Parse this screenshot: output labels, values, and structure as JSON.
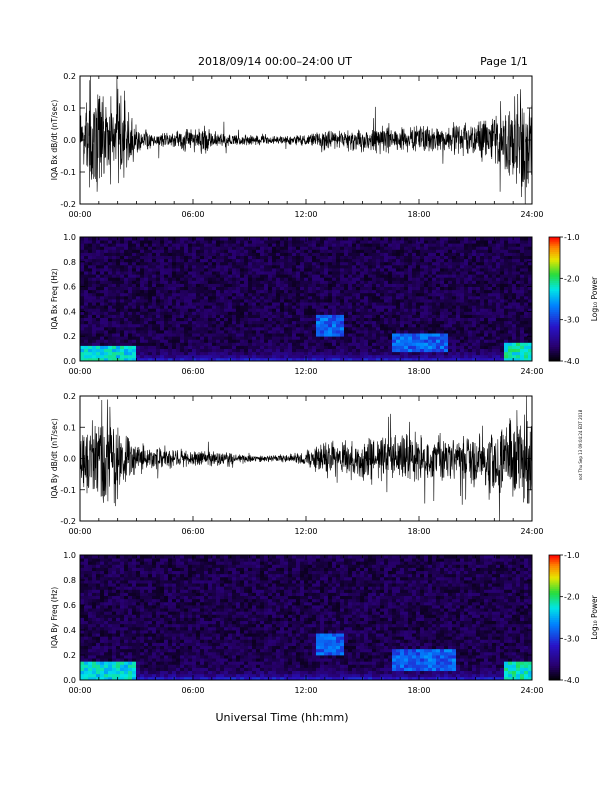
{
  "header": {
    "title": "2018/09/14   00:00–24:00 UT",
    "page": "Page 1/1"
  },
  "side_stamp": "not Thu Sep 13 09:04:24 EDT 2018",
  "xlabel": "Universal Time (hh:mm)",
  "colors": {
    "trace": "#000000",
    "axis": "#000000",
    "background": "#ffffff"
  },
  "chart_data": [
    {
      "type": "line",
      "ylabel": "IQA Bx dB/dt (nT/sec)",
      "x_ticks": [
        "00:00",
        "06:00",
        "12:00",
        "18:00",
        "24:00"
      ],
      "y_ticks": [
        "-0.2",
        "-0.1",
        "0.0",
        "0.1",
        "0.2"
      ],
      "xlim": [
        0,
        24
      ],
      "ylim": [
        -0.2,
        0.2
      ],
      "x_unit": "hours UT",
      "envelope_hours": [
        0,
        0.5,
        1.0,
        1.5,
        2.0,
        2.5,
        3,
        4,
        5,
        5.5,
        6,
        6.5,
        7,
        8,
        9,
        10,
        11,
        12,
        13,
        14,
        15,
        16,
        17,
        18,
        19,
        20,
        21,
        21.5,
        22,
        22.5,
        23,
        23.5,
        24
      ],
      "envelope_amplitude": [
        0.07,
        0.2,
        0.2,
        0.15,
        0.2,
        0.12,
        0.05,
        0.03,
        0.03,
        0.05,
        0.04,
        0.07,
        0.03,
        0.025,
        0.02,
        0.015,
        0.015,
        0.025,
        0.035,
        0.04,
        0.045,
        0.05,
        0.045,
        0.05,
        0.05,
        0.06,
        0.065,
        0.08,
        0.1,
        0.12,
        0.15,
        0.2,
        0.2
      ]
    },
    {
      "type": "heatmap",
      "ylabel": "IQA Bx Freq (Hz)",
      "x_ticks": [
        "00:00",
        "06:00",
        "12:00",
        "18:00",
        "24:00"
      ],
      "y_ticks": [
        "0.0",
        "0.2",
        "0.4",
        "0.6",
        "0.8",
        "1.0"
      ],
      "xlim": [
        0,
        24
      ],
      "ylim": [
        0,
        1.0
      ],
      "colorbar": {
        "label": "Log₁₀ Power",
        "ticks": [
          "-1.0",
          "-2.0",
          "-3.0",
          "-4.0"
        ],
        "range": [
          -4.0,
          -1.0
        ]
      },
      "features": [
        {
          "t": [
            0,
            3
          ],
          "f": [
            0,
            0.12
          ],
          "log_power": -2.3
        },
        {
          "t": [
            12.5,
            14
          ],
          "f": [
            0.2,
            0.38
          ],
          "log_power": -2.8
        },
        {
          "t": [
            16.5,
            19.5
          ],
          "f": [
            0.08,
            0.22
          ],
          "log_power": -2.8
        },
        {
          "t": [
            22.5,
            24
          ],
          "f": [
            0,
            0.15
          ],
          "log_power": -2.2
        }
      ]
    },
    {
      "type": "line",
      "ylabel": "IQA By dB/dt (nT/sec)",
      "x_ticks": [
        "00:00",
        "06:00",
        "12:00",
        "18:00",
        "24:00"
      ],
      "y_ticks": [
        "-0.2",
        "-0.1",
        "0.0",
        "0.1",
        "0.2"
      ],
      "xlim": [
        0,
        24
      ],
      "ylim": [
        -0.2,
        0.2
      ],
      "x_unit": "hours UT",
      "envelope_hours": [
        0,
        0.5,
        1.0,
        1.5,
        2.0,
        2.5,
        3,
        4,
        5,
        6,
        7,
        8,
        9,
        10,
        11,
        12,
        12.5,
        13,
        14,
        15,
        16,
        17,
        18,
        19,
        20,
        21,
        21.5,
        22,
        22.5,
        23,
        23.5,
        24
      ],
      "envelope_amplitude": [
        0.08,
        0.15,
        0.2,
        0.2,
        0.15,
        0.1,
        0.06,
        0.04,
        0.035,
        0.03,
        0.03,
        0.02,
        0.015,
        0.012,
        0.015,
        0.03,
        0.045,
        0.06,
        0.07,
        0.08,
        0.08,
        0.09,
        0.09,
        0.09,
        0.095,
        0.1,
        0.11,
        0.13,
        0.15,
        0.18,
        0.2,
        0.2
      ]
    },
    {
      "type": "heatmap",
      "ylabel": "IQA By Freq (Hz)",
      "x_ticks": [
        "00:00",
        "06:00",
        "12:00",
        "18:00",
        "24:00"
      ],
      "y_ticks": [
        "0.0",
        "0.2",
        "0.4",
        "0.6",
        "0.8",
        "1.0"
      ],
      "xlim": [
        0,
        24
      ],
      "ylim": [
        0,
        1.0
      ],
      "colorbar": {
        "label": "Log₁₀ Power",
        "ticks": [
          "-1.0",
          "-2.0",
          "-3.0",
          "-4.0"
        ],
        "range": [
          -4.0,
          -1.0
        ]
      },
      "features": [
        {
          "t": [
            0,
            3
          ],
          "f": [
            0,
            0.15
          ],
          "log_power": -2.3
        },
        {
          "t": [
            12.5,
            14
          ],
          "f": [
            0.2,
            0.38
          ],
          "log_power": -2.8
        },
        {
          "t": [
            16.5,
            20
          ],
          "f": [
            0.08,
            0.25
          ],
          "log_power": -2.8
        },
        {
          "t": [
            22.5,
            24
          ],
          "f": [
            0,
            0.15
          ],
          "log_power": -2.2
        }
      ]
    }
  ]
}
